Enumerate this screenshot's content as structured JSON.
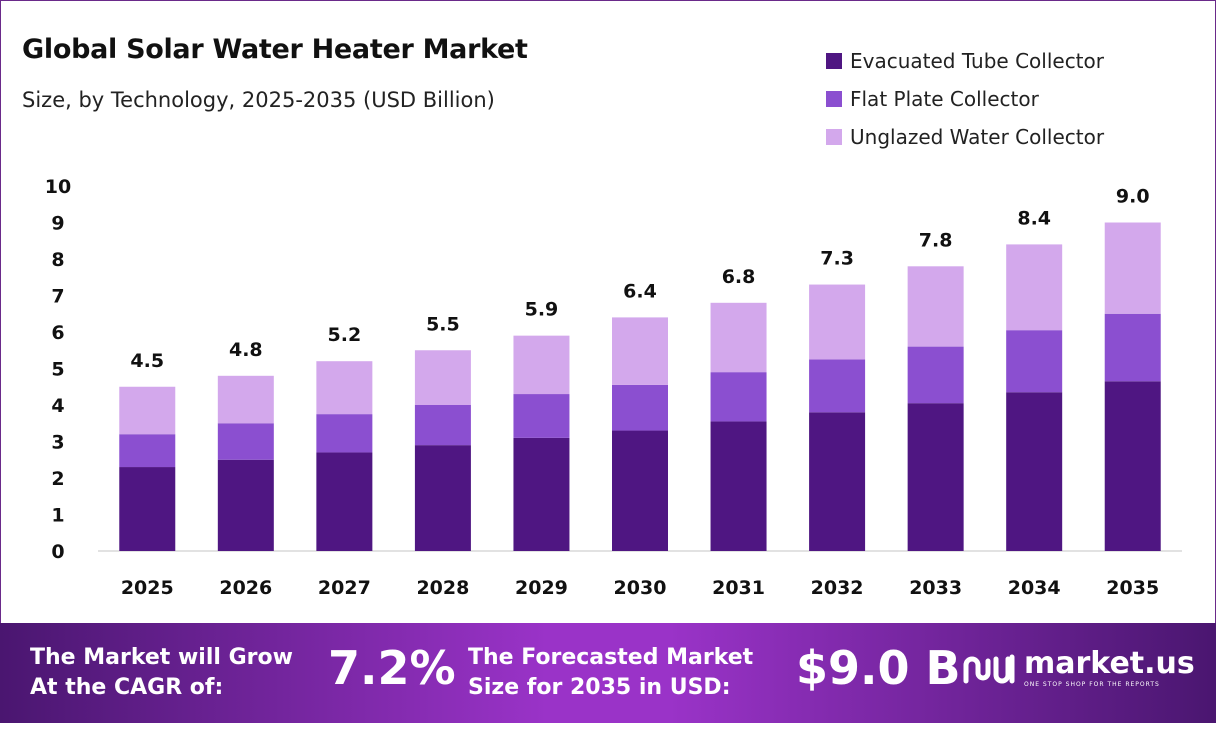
{
  "title": "Global Solar Water Heater Market",
  "subtitle": "Size, by Technology, 2025-2035 (USD Billion)",
  "legend": [
    {
      "label": "Evacuated Tube Collector",
      "color": "#4f1682"
    },
    {
      "label": "Flat Plate Collector",
      "color": "#8b4fd0"
    },
    {
      "label": "Unglazed Water Collector",
      "color": "#d3a8ec"
    }
  ],
  "chart_data": {
    "type": "bar",
    "stacked": true,
    "categories": [
      "2025",
      "2026",
      "2027",
      "2028",
      "2029",
      "2030",
      "2031",
      "2032",
      "2033",
      "2034",
      "2035"
    ],
    "series": [
      {
        "name": "Evacuated Tube Collector",
        "color": "#4f1682",
        "values": [
          2.3,
          2.5,
          2.7,
          2.9,
          3.1,
          3.3,
          3.55,
          3.8,
          4.05,
          4.35,
          4.65
        ]
      },
      {
        "name": "Flat Plate Collector",
        "color": "#8b4fd0",
        "values": [
          0.9,
          1.0,
          1.05,
          1.1,
          1.2,
          1.25,
          1.35,
          1.45,
          1.55,
          1.7,
          1.85
        ]
      },
      {
        "name": "Unglazed Water Collector",
        "color": "#d3a8ec",
        "values": [
          1.3,
          1.3,
          1.45,
          1.5,
          1.6,
          1.85,
          1.9,
          2.05,
          2.2,
          2.35,
          2.5
        ]
      }
    ],
    "totals": [
      "4.5",
      "4.8",
      "5.2",
      "5.5",
      "5.9",
      "6.4",
      "6.8",
      "7.3",
      "7.8",
      "8.4",
      "9.0"
    ],
    "yticks": [
      0,
      1,
      2,
      3,
      4,
      5,
      6,
      7,
      8,
      9,
      10
    ],
    "ylim": [
      0,
      10
    ],
    "grid": false,
    "legend_position": "top-right"
  },
  "footer": {
    "cagr_label": "The Market will Grow At the CAGR of:",
    "cagr_value": "7.2%",
    "forecast_label": "The Forecasted Market Size for 2035 in USD:",
    "forecast_value": "$9.0 B",
    "brand_name": "market.us",
    "brand_tagline": "ONE STOP SHOP FOR THE REPORTS"
  }
}
